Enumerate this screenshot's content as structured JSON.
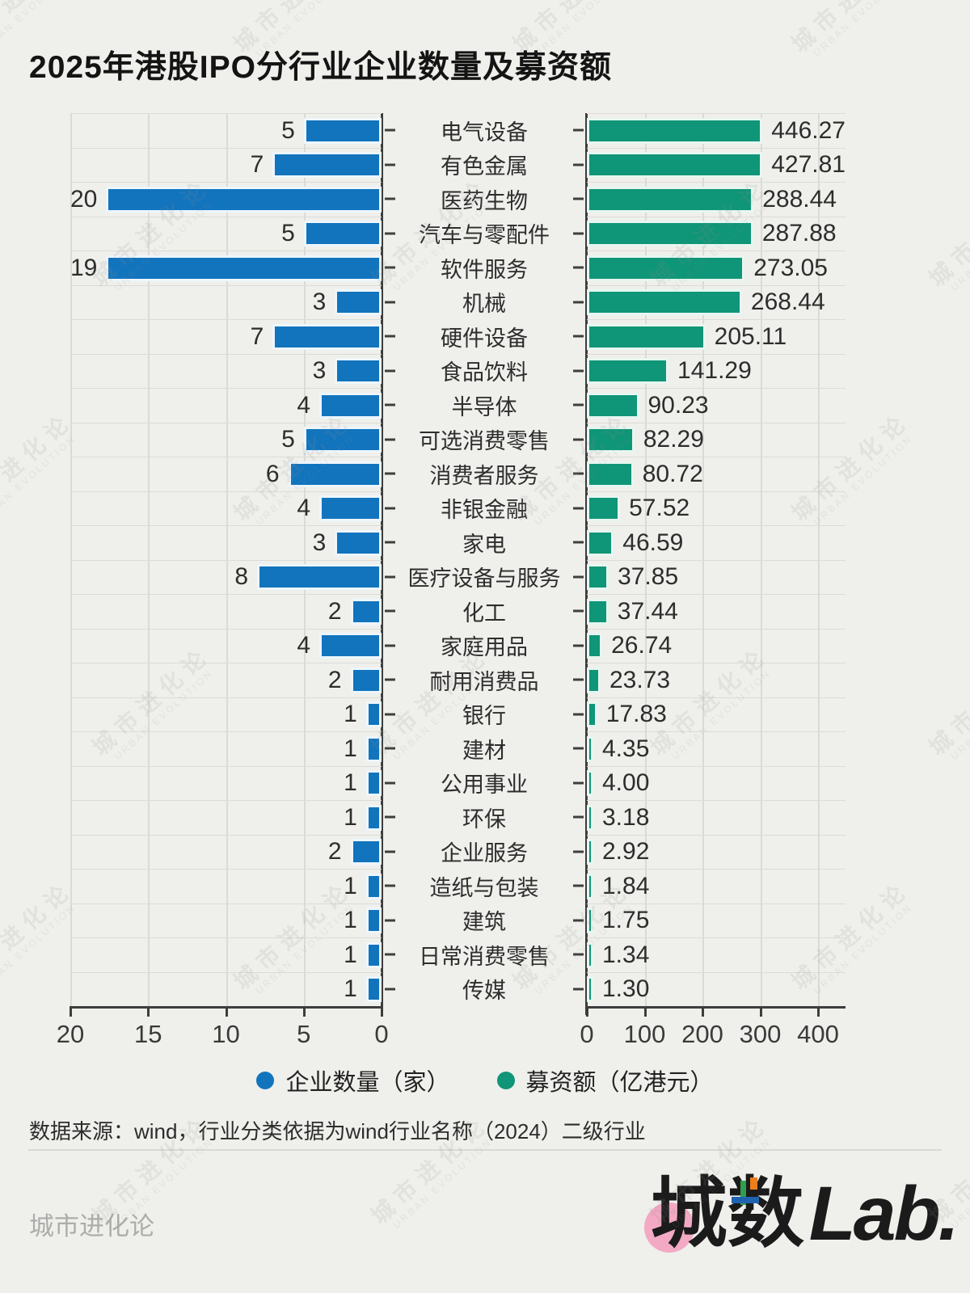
{
  "title": "2025年港股IPO分行业企业数量及募资额",
  "chart_data": {
    "type": "bar",
    "layout": "mirrored-horizontal",
    "categories": [
      "电气设备",
      "有色金属",
      "医药生物",
      "汽车与零配件",
      "软件服务",
      "机械",
      "硬件设备",
      "食品饮料",
      "半导体",
      "可选消费零售",
      "消费者服务",
      "非银金融",
      "家电",
      "医疗设备与服务",
      "化工",
      "家庭用品",
      "耐用消费品",
      "银行",
      "建材",
      "公用事业",
      "环保",
      "企业服务",
      "造纸与包装",
      "建筑",
      "日常消费零售",
      "传媒"
    ],
    "series": [
      {
        "name": "企业数量（家）",
        "color": "#1274bd",
        "side": "left",
        "values": [
          5,
          7,
          20,
          5,
          19,
          3,
          7,
          3,
          4,
          5,
          6,
          4,
          3,
          8,
          2,
          4,
          2,
          1,
          1,
          1,
          1,
          2,
          1,
          1,
          1,
          1
        ],
        "axis": {
          "min": 0,
          "max": 20,
          "ticks": [
            20,
            15,
            10,
            5,
            0
          ],
          "reversed": true
        }
      },
      {
        "name": "募资额（亿港元）",
        "color": "#0f9577",
        "side": "right",
        "values": [
          446.27,
          427.81,
          288.44,
          287.88,
          273.05,
          268.44,
          205.11,
          141.29,
          90.23,
          82.29,
          80.72,
          57.52,
          46.59,
          37.85,
          37.44,
          26.74,
          23.73,
          17.83,
          4.35,
          4.0,
          3.18,
          2.92,
          1.84,
          1.75,
          1.34,
          1.3
        ],
        "axis": {
          "min": 0,
          "max": 400,
          "ticks": [
            0,
            100,
            200,
            300,
            400
          ]
        }
      }
    ],
    "grid": true,
    "value_labels": true,
    "legend_position": "bottom"
  },
  "legend": [
    {
      "label": "企业数量（家）",
      "color": "#1274bd"
    },
    {
      "label": "募资额（亿港元）",
      "color": "#0f9577"
    }
  ],
  "source_note": "数据来源：wind，行业分类依据为wind行业名称（2024）二级行业",
  "footer": {
    "site_name": "城市进化论",
    "logo": {
      "cheng": "城",
      "shu": "数",
      "lab": "Lab."
    }
  },
  "watermark": {
    "line1": "城市进化论",
    "line2": "URBAN EVOLUTION"
  }
}
